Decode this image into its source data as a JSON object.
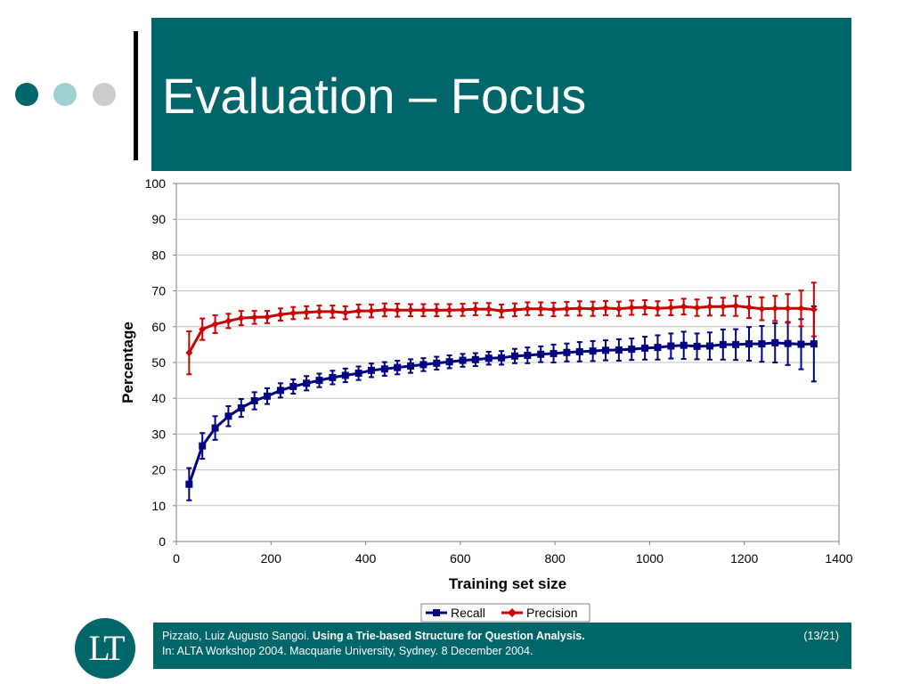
{
  "slide": {
    "title": "Evaluation – Focus",
    "dot_colors": [
      "#00666a",
      "#9fd0d2",
      "#cccccc"
    ]
  },
  "footer": {
    "author": "Pizzato, Luiz Augusto Sangoi.",
    "paper_title": "Using a Trie-based Structure for Question Analysis.",
    "venue": "In: ALTA Workshop 2004. Macquarie University, Sydney. 8 December 2004.",
    "page": "(13/21)"
  },
  "logo": {
    "text": "LT"
  },
  "chart_data": {
    "type": "line",
    "title": "",
    "xlabel": "Training set size",
    "ylabel": "Percentage",
    "xlim": [
      0,
      1400
    ],
    "ylim": [
      0,
      100
    ],
    "xticks": [
      0,
      200,
      400,
      600,
      800,
      1000,
      1200,
      1400
    ],
    "yticks": [
      0,
      10,
      20,
      30,
      40,
      50,
      60,
      70,
      80,
      90,
      100
    ],
    "grid": "horizontal",
    "legend": "bottom-center",
    "x": [
      27,
      55,
      82,
      110,
      137,
      165,
      192,
      220,
      247,
      275,
      302,
      330,
      357,
      385,
      412,
      440,
      467,
      495,
      522,
      550,
      577,
      605,
      632,
      660,
      687,
      715,
      742,
      770,
      797,
      825,
      852,
      880,
      907,
      935,
      962,
      990,
      1017,
      1045,
      1072,
      1100,
      1127,
      1155,
      1182,
      1210,
      1237,
      1265,
      1292,
      1320,
      1347
    ],
    "series": [
      {
        "name": "Recall",
        "color": "#000080",
        "marker": "square",
        "values": [
          16.0,
          26.7,
          31.7,
          35.0,
          37.3,
          39.3,
          40.6,
          42.2,
          43.3,
          44.2,
          45.0,
          45.8,
          46.4,
          47.0,
          47.8,
          48.2,
          48.6,
          49.0,
          49.4,
          49.8,
          50.2,
          50.6,
          50.8,
          51.2,
          51.3,
          51.8,
          52.0,
          52.3,
          52.5,
          52.8,
          53.0,
          53.2,
          53.4,
          53.5,
          53.7,
          54.0,
          54.2,
          54.6,
          54.8,
          54.5,
          54.6,
          55.0,
          55.0,
          55.2,
          55.2,
          55.5,
          55.3,
          55.1,
          55.2
        ],
        "errors": [
          4.5,
          3.6,
          3.3,
          2.8,
          2.5,
          2.4,
          2.2,
          2.0,
          2.0,
          2.0,
          1.9,
          1.9,
          1.9,
          1.9,
          1.9,
          1.9,
          1.9,
          1.9,
          1.8,
          1.8,
          1.8,
          1.8,
          1.8,
          1.8,
          1.9,
          2.0,
          2.2,
          2.2,
          2.5,
          2.5,
          2.7,
          2.8,
          2.8,
          3.0,
          3.0,
          3.2,
          3.4,
          3.5,
          3.8,
          3.6,
          3.8,
          4.2,
          4.3,
          4.7,
          5.0,
          5.5,
          6.0,
          7.0,
          10.5
        ]
      },
      {
        "name": "Precision",
        "color": "#cc0000",
        "marker": "diamond",
        "values": [
          52.7,
          59.3,
          60.7,
          61.6,
          62.4,
          62.6,
          62.7,
          63.4,
          63.8,
          64.0,
          64.2,
          64.2,
          63.9,
          64.4,
          64.4,
          64.7,
          64.6,
          64.6,
          64.6,
          64.6,
          64.6,
          64.7,
          64.9,
          64.9,
          64.4,
          64.7,
          65.0,
          65.0,
          64.8,
          65.0,
          65.1,
          65.0,
          65.2,
          65.0,
          65.3,
          65.4,
          65.1,
          65.3,
          65.6,
          65.3,
          65.6,
          65.6,
          65.8,
          65.4,
          65.0,
          65.1,
          65.1,
          65.1,
          64.8
        ],
        "errors": [
          6.0,
          3.0,
          2.5,
          2.0,
          2.0,
          1.8,
          1.7,
          1.7,
          1.7,
          1.7,
          1.7,
          1.7,
          1.8,
          1.8,
          1.8,
          1.8,
          1.8,
          1.7,
          1.7,
          1.7,
          1.7,
          1.7,
          1.7,
          1.7,
          1.8,
          1.8,
          1.8,
          1.8,
          1.9,
          1.9,
          2.0,
          2.0,
          2.0,
          2.0,
          2.0,
          2.0,
          2.0,
          2.1,
          2.2,
          2.3,
          2.5,
          2.5,
          2.8,
          3.0,
          3.2,
          3.5,
          4.0,
          5.0,
          7.5
        ]
      }
    ]
  }
}
